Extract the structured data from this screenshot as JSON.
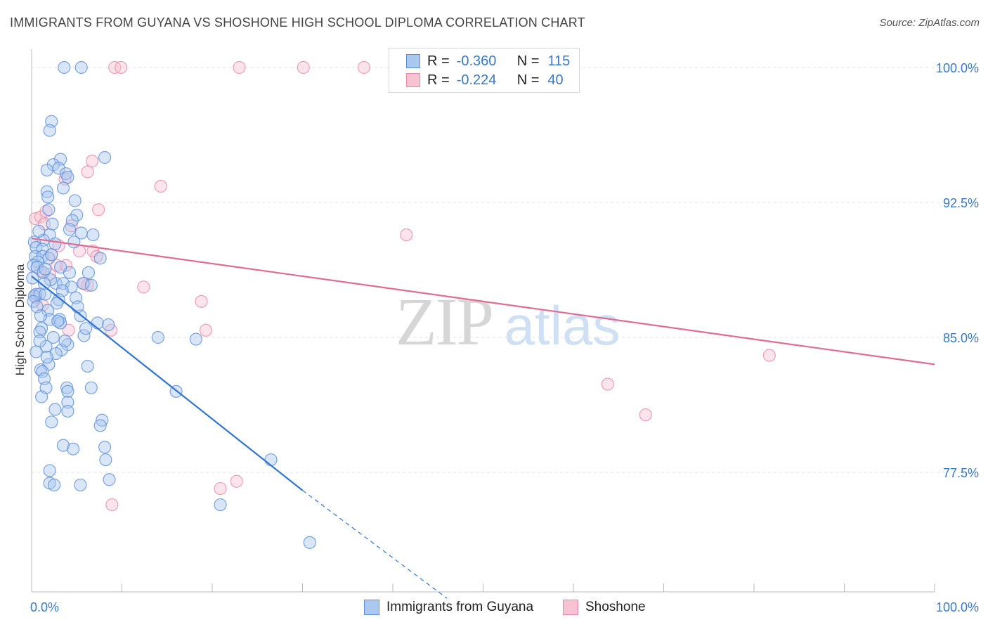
{
  "chart_data": {
    "type": "scatter",
    "title": "IMMIGRANTS FROM GUYANA VS SHOSHONE HIGH SCHOOL DIPLOMA CORRELATION CHART",
    "source": "Source: ZipAtlas.com",
    "xlabel": "",
    "ylabel": "High School Diploma",
    "xlim": [
      0,
      100
    ],
    "ylim": [
      70.5,
      101.0
    ],
    "x_tick_labels": [
      {
        "value": 0,
        "label": "0.0%"
      },
      {
        "value": 100,
        "label": "100.0%"
      }
    ],
    "y_ticks": [
      {
        "value": 100.0,
        "label": "100.0%"
      },
      {
        "value": 92.5,
        "label": "92.5%"
      },
      {
        "value": 85.0,
        "label": "85.0%"
      },
      {
        "value": 77.5,
        "label": "77.5%"
      }
    ],
    "watermark": {
      "zip": "ZIP",
      "atlas": "atlas"
    },
    "stats": [
      {
        "r_label": "R =",
        "r_value": "-0.360",
        "n_label": "N =",
        "n_value": "115"
      },
      {
        "r_label": "R =",
        "r_value": "-0.224",
        "n_label": "N =",
        "n_value": "40"
      }
    ],
    "series": [
      {
        "name": "Immigrants from Guyana",
        "color": "#5b8fd9",
        "fill": "#aac8f0",
        "line_color": "#2f74d0",
        "trend": {
          "x0": 0,
          "y0": 88.4,
          "x1": 30,
          "y1": 76.5,
          "dash_to_x": 46,
          "dash_to_y": 70.5
        },
        "points": [
          [
            3.6,
            100
          ],
          [
            5.5,
            100
          ],
          [
            2.2,
            97
          ],
          [
            2.0,
            96.5
          ],
          [
            3.2,
            94.9
          ],
          [
            8.1,
            95.0
          ],
          [
            2.4,
            94.6
          ],
          [
            1.7,
            94.3
          ],
          [
            3.0,
            94.4
          ],
          [
            3.8,
            94.1
          ],
          [
            4.0,
            93.9
          ],
          [
            3.5,
            93.3
          ],
          [
            1.7,
            93.1
          ],
          [
            1.8,
            92.8
          ],
          [
            4.8,
            92.6
          ],
          [
            1.9,
            92.1
          ],
          [
            5.0,
            91.8
          ],
          [
            4.5,
            91.5
          ],
          [
            2.3,
            91.3
          ],
          [
            4.2,
            91.0
          ],
          [
            5.5,
            90.8
          ],
          [
            6.8,
            90.7
          ],
          [
            2.0,
            90.7
          ],
          [
            1.3,
            90.4
          ],
          [
            0.3,
            90.3
          ],
          [
            0.5,
            90.0
          ],
          [
            1.2,
            89.9
          ],
          [
            0.4,
            89.5
          ],
          [
            1.2,
            89.5
          ],
          [
            1.9,
            89.4
          ],
          [
            0.7,
            89.2
          ],
          [
            7.6,
            89.4
          ],
          [
            0.2,
            89.0
          ],
          [
            0.6,
            88.9
          ],
          [
            1.3,
            88.6
          ],
          [
            4.2,
            88.6
          ],
          [
            6.3,
            88.6
          ],
          [
            0.1,
            88.3
          ],
          [
            2.7,
            88.0
          ],
          [
            3.5,
            88.0
          ],
          [
            5.7,
            88.0
          ],
          [
            6.6,
            87.9
          ],
          [
            4.4,
            87.8
          ],
          [
            3.4,
            87.6
          ],
          [
            0.5,
            87.4
          ],
          [
            0.3,
            87.3
          ],
          [
            0.9,
            87.4
          ],
          [
            1.5,
            87.4
          ],
          [
            0.2,
            87.0
          ],
          [
            3.0,
            87.1
          ],
          [
            0.6,
            86.7
          ],
          [
            1.8,
            86.5
          ],
          [
            5.4,
            86.2
          ],
          [
            2.0,
            86.0
          ],
          [
            3.1,
            86.0
          ],
          [
            3.2,
            85.8
          ],
          [
            2.9,
            85.9
          ],
          [
            7.3,
            85.8
          ],
          [
            8.5,
            85.7
          ],
          [
            1.1,
            85.5
          ],
          [
            0.9,
            85.3
          ],
          [
            5.8,
            85.1
          ],
          [
            2.4,
            85.0
          ],
          [
            14.0,
            85.0
          ],
          [
            18.2,
            84.9
          ],
          [
            4.0,
            84.6
          ],
          [
            1.6,
            84.5
          ],
          [
            3.3,
            84.3
          ],
          [
            0.5,
            84.2
          ],
          [
            2.7,
            84.1
          ],
          [
            1.9,
            83.5
          ],
          [
            6.2,
            83.4
          ],
          [
            1.0,
            83.2
          ],
          [
            1.2,
            83.1
          ],
          [
            1.4,
            82.7
          ],
          [
            3.9,
            82.2
          ],
          [
            6.6,
            82.2
          ],
          [
            1.6,
            82.2
          ],
          [
            4.0,
            82.0
          ],
          [
            16.0,
            82.0
          ],
          [
            1.1,
            81.7
          ],
          [
            4.0,
            81.4
          ],
          [
            2.6,
            81.0
          ],
          [
            4.0,
            80.9
          ],
          [
            7.8,
            80.4
          ],
          [
            2.2,
            80.3
          ],
          [
            7.6,
            80.1
          ],
          [
            3.5,
            79.0
          ],
          [
            4.6,
            78.8
          ],
          [
            8.1,
            78.9
          ],
          [
            8.2,
            78.2
          ],
          [
            26.5,
            78.2
          ],
          [
            2.0,
            77.6
          ],
          [
            8.6,
            77.1
          ],
          [
            2.0,
            76.9
          ],
          [
            2.5,
            76.8
          ],
          [
            5.4,
            76.8
          ],
          [
            20.9,
            75.7
          ],
          [
            30.8,
            73.6
          ],
          [
            1.5,
            88.8
          ],
          [
            2.2,
            89.6
          ],
          [
            2.8,
            86.9
          ],
          [
            1.0,
            86.2
          ],
          [
            3.7,
            84.8
          ],
          [
            2.1,
            88.2
          ],
          [
            4.9,
            87.2
          ],
          [
            0.8,
            90.9
          ],
          [
            6.0,
            85.5
          ],
          [
            1.4,
            88.0
          ],
          [
            2.6,
            90.2
          ],
          [
            0.9,
            84.8
          ],
          [
            1.7,
            83.9
          ],
          [
            4.7,
            90.3
          ],
          [
            3.2,
            88.9
          ],
          [
            5.1,
            86.7
          ]
        ]
      },
      {
        "name": "Shoshone",
        "color": "#e889a8",
        "fill": "#f7c3d3",
        "line_color": "#e06c93",
        "trend": {
          "x0": 0,
          "y0": 90.5,
          "x1": 100,
          "y1": 83.5
        },
        "points": [
          [
            9.2,
            100
          ],
          [
            9.9,
            100
          ],
          [
            23.0,
            100
          ],
          [
            30.1,
            100
          ],
          [
            36.8,
            100
          ],
          [
            6.7,
            94.8
          ],
          [
            6.2,
            94.2
          ],
          [
            3.7,
            93.8
          ],
          [
            14.3,
            93.4
          ],
          [
            7.4,
            92.1
          ],
          [
            0.4,
            91.6
          ],
          [
            1.0,
            91.7
          ],
          [
            1.4,
            91.3
          ],
          [
            4.4,
            91.2
          ],
          [
            6.8,
            89.8
          ],
          [
            5.3,
            89.8
          ],
          [
            7.2,
            89.5
          ],
          [
            2.2,
            89.6
          ],
          [
            2.8,
            89.0
          ],
          [
            3.8,
            89.0
          ],
          [
            1.0,
            88.7
          ],
          [
            2.0,
            88.5
          ],
          [
            5.8,
            88.0
          ],
          [
            6.2,
            87.9
          ],
          [
            12.4,
            87.8
          ],
          [
            0.5,
            87.2
          ],
          [
            1.2,
            86.8
          ],
          [
            18.8,
            87.0
          ],
          [
            4.1,
            85.4
          ],
          [
            8.8,
            85.4
          ],
          [
            19.3,
            85.4
          ],
          [
            41.5,
            90.7
          ],
          [
            81.7,
            84.0
          ],
          [
            63.8,
            82.4
          ],
          [
            68.0,
            80.7
          ],
          [
            22.7,
            77.0
          ],
          [
            20.9,
            76.6
          ],
          [
            8.9,
            75.7
          ],
          [
            3.0,
            90.1
          ],
          [
            1.6,
            92.0
          ]
        ]
      }
    ]
  }
}
